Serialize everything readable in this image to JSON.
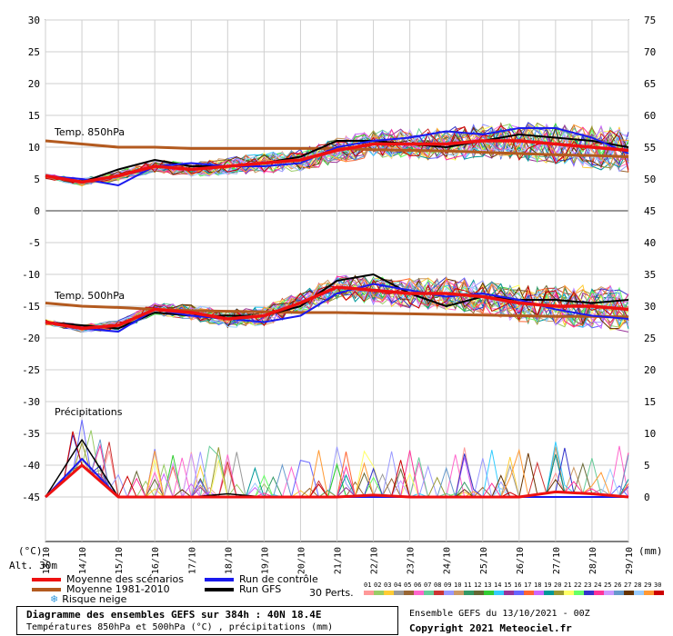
{
  "chart_data": {
    "type": "line",
    "title": "Diagramme des ensembles GEFS sur 384h : 40N 18.4E",
    "subtitle": "Températures 850hPa et 500hPa (°C) , précipitations (mm)",
    "left_axis_ticks": [
      "30",
      "25",
      "20",
      "15",
      "10",
      "5",
      "0",
      "-5",
      "-10",
      "-15",
      "-20",
      "-25",
      "-30",
      "-35",
      "-40",
      "-45"
    ],
    "right_axis_ticks": [
      "75",
      "70",
      "65",
      "60",
      "55",
      "50",
      "45",
      "40",
      "35",
      "30",
      "25",
      "20",
      "15",
      "10",
      "5",
      "0"
    ],
    "left_unit": "(°C)",
    "right_unit": "(mm)",
    "altitude_label": "Alt. 30m",
    "x_ticks": [
      "13/10",
      "14/10",
      "15/10",
      "16/10",
      "17/10",
      "18/10",
      "19/10",
      "20/10",
      "21/10",
      "22/10",
      "23/10",
      "24/10",
      "25/10",
      "26/10",
      "27/10",
      "28/10",
      "29/10"
    ],
    "panels": {
      "t850_label": "Temp. 850hPa",
      "t500_label": "Temp. 500hPa",
      "precip_label": "Précipitations"
    },
    "series_colors": {
      "mean": "#ee1111",
      "climatology": "#b35a1f",
      "control": "#1a1aee",
      "gfs": "#000000"
    },
    "t850": {
      "mean": [
        5.5,
        4.5,
        5.5,
        7.0,
        6.5,
        7.0,
        7.5,
        8.0,
        9.5,
        10.5,
        10.5,
        10.5,
        11.0,
        11.0,
        10.5,
        10.0,
        9.5
      ],
      "climatology": [
        11.0,
        10.5,
        10.0,
        10.0,
        9.8,
        9.8,
        9.8,
        9.8,
        9.8,
        9.6,
        9.5,
        9.4,
        9.2,
        9.0,
        8.8,
        8.7,
        8.5
      ],
      "control": [
        5.5,
        5.0,
        4.0,
        7.0,
        7.5,
        7.0,
        7.0,
        7.5,
        10.0,
        11.0,
        11.5,
        12.5,
        12.0,
        13.0,
        13.0,
        11.5,
        9.0
      ],
      "gfs": [
        5.5,
        4.5,
        6.5,
        8.0,
        7.0,
        7.0,
        7.5,
        8.5,
        11.0,
        11.0,
        10.5,
        10.0,
        11.0,
        12.0,
        11.5,
        11.0,
        10.0
      ]
    },
    "t500": {
      "mean": [
        -17.5,
        -18.5,
        -18.0,
        -15.5,
        -16.0,
        -17.0,
        -16.5,
        -14.5,
        -12.0,
        -12.5,
        -13.0,
        -13.0,
        -13.5,
        -14.5,
        -15.0,
        -15.0,
        -15.5
      ],
      "climatology": [
        -14.5,
        -15.0,
        -15.2,
        -15.5,
        -15.7,
        -15.8,
        -15.9,
        -16.0,
        -16.0,
        -16.1,
        -16.2,
        -16.3,
        -16.4,
        -16.5,
        -16.6,
        -16.6,
        -16.7
      ],
      "control": [
        -17.5,
        -18.5,
        -19.0,
        -15.5,
        -16.5,
        -17.0,
        -17.5,
        -16.5,
        -13.0,
        -11.5,
        -12.5,
        -13.5,
        -13.0,
        -14.0,
        -15.5,
        -16.5,
        -17.0
      ],
      "gfs": [
        -17.5,
        -18.0,
        -18.5,
        -16.0,
        -16.5,
        -16.5,
        -16.5,
        -15.0,
        -11.0,
        -10.0,
        -13.0,
        -15.0,
        -13.5,
        -14.0,
        -14.0,
        -14.5,
        -14.0
      ]
    },
    "precip": {
      "mean": [
        0,
        5,
        0,
        0,
        0,
        0,
        0,
        0,
        0,
        0.3,
        0,
        0,
        0,
        0,
        0.8,
        0.5,
        0
      ],
      "control": [
        0,
        6,
        0,
        0,
        0,
        0,
        0,
        0,
        0,
        0,
        0,
        0,
        0,
        0,
        0,
        0,
        0
      ],
      "gfs": [
        0,
        9,
        0,
        0,
        0,
        0.5,
        0,
        0,
        0,
        0,
        0,
        0,
        0,
        0,
        0,
        0,
        0
      ]
    },
    "ensemble_count": 30
  },
  "legend": {
    "mean": "Moyenne des scénarios",
    "climatology": "Moyenne 1981-2010",
    "snow": "Risque neige",
    "control": "Run de contrôle",
    "gfs": "Run GFS",
    "perts": "30 Perts."
  },
  "pert_colors": [
    "#ff9999",
    "#99cc66",
    "#ffcc33",
    "#999999",
    "#996633",
    "#ff66cc",
    "#66cc99",
    "#cc3333",
    "#9999ff",
    "#cc9966",
    "#339966",
    "#666633",
    "#33cc33",
    "#33ccff",
    "#993399",
    "#6666ff",
    "#ff6633",
    "#cc66ff",
    "#009999",
    "#999933",
    "#ffff66",
    "#66ff66",
    "#3333cc",
    "#ff3399",
    "#cc99ff",
    "#6699cc",
    "#663300",
    "#99ccff",
    "#ff9933",
    "#cc0000"
  ],
  "footer": {
    "run_info": "Ensemble GEFS du 13/10/2021 - 00Z",
    "copyright": "Copyright 2021 Meteociel.fr"
  }
}
